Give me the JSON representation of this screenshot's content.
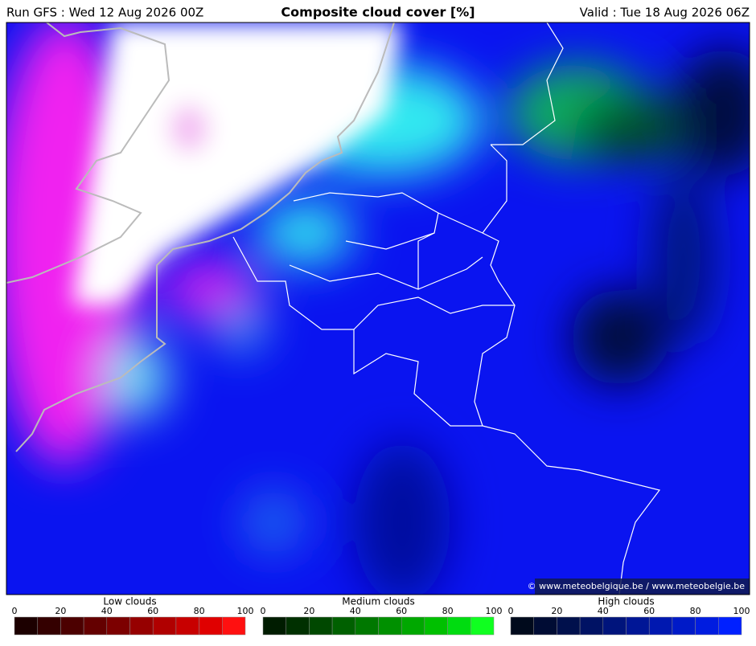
{
  "header": {
    "run": "Run GFS : Wed 12 Aug 2026 00Z",
    "title": "Composite cloud cover [%]",
    "valid": "Valid : Tue 18 Aug 2026 06Z"
  },
  "credit": "© www.meteobelgique.be / www.meteobelgie.be",
  "legends": [
    {
      "title": "Low clouds",
      "ticks": [
        0,
        20,
        40,
        60,
        80,
        100
      ],
      "colors": [
        "#1c0000",
        "#340000",
        "#4c0000",
        "#640000",
        "#7c0000",
        "#960000",
        "#b00000",
        "#c80000",
        "#e00000",
        "#ff1010"
      ]
    },
    {
      "title": "Medium clouds",
      "ticks": [
        0,
        20,
        40,
        60,
        80,
        100
      ],
      "colors": [
        "#001c00",
        "#003000",
        "#004800",
        "#006000",
        "#007800",
        "#009000",
        "#00a800",
        "#00c000",
        "#00dc10",
        "#10ff20"
      ]
    },
    {
      "title": "High clouds",
      "ticks": [
        0,
        20,
        40,
        60,
        80,
        100
      ],
      "colors": [
        "#000a1c",
        "#000c34",
        "#00104c",
        "#001264",
        "#00147c",
        "#001696",
        "#0018b0",
        "#001ac8",
        "#001ce0",
        "#0020ff"
      ]
    }
  ]
}
